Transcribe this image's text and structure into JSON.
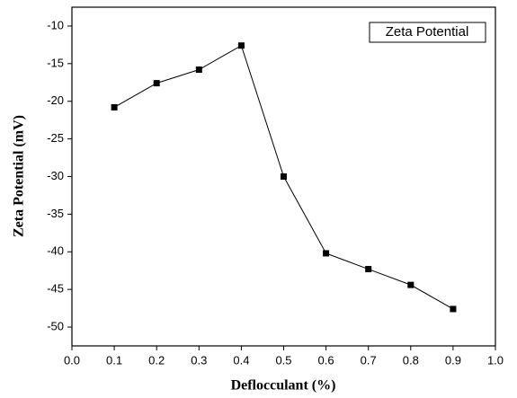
{
  "chart_data": {
    "type": "line",
    "x_label": "Deflocculant (%)",
    "y_label": "Zeta Potential (mV)",
    "x": [
      0.1,
      0.2,
      0.3,
      0.4,
      0.5,
      0.6,
      0.7,
      0.8,
      0.9
    ],
    "series": [
      {
        "name": "Zeta Potential",
        "color": "#000000",
        "values": [
          -20.8,
          -17.6,
          -15.8,
          -12.6,
          -30.0,
          -40.2,
          -42.3,
          -44.4,
          -47.6
        ]
      }
    ],
    "xlim": [
      0,
      1
    ],
    "xticks": [
      {
        "value": 0,
        "label": "0.0"
      },
      0.1,
      0.2,
      0.3,
      0.4,
      0.5,
      0.6,
      0.7,
      0.8,
      0.9,
      {
        "value": 1,
        "label": "1.0"
      }
    ],
    "ylim": [
      -52.5,
      -7.5
    ],
    "yticks": [
      -10,
      -15,
      -20,
      -25,
      -30,
      -35,
      -40,
      -45,
      -50
    ],
    "legend": "upper right"
  }
}
